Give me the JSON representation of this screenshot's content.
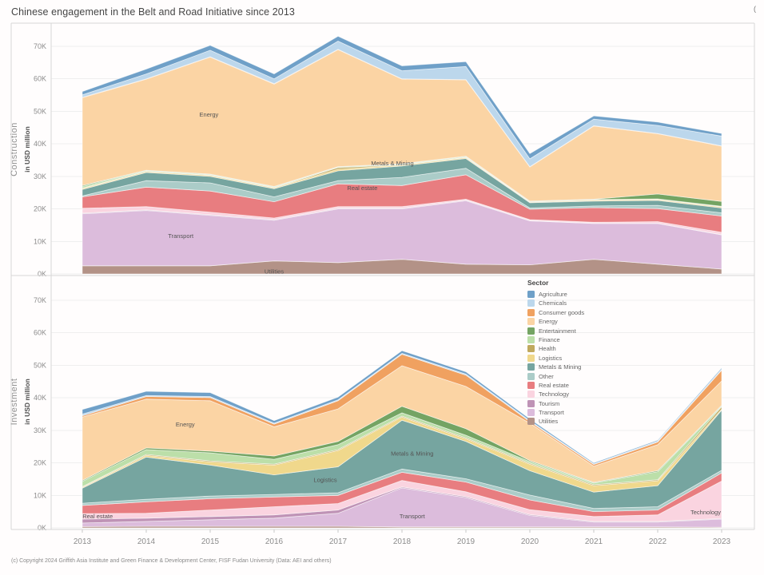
{
  "title": "Chinese engagement in the Belt and Road Initiative since 2013",
  "corner_text": "(",
  "footer": "(c) Copyright 2024 Griffith Asia Institute and Green Finance & Development Center, FISF Fudan University (Data: AEI and others)",
  "legend": {
    "title": "Sector",
    "items": [
      {
        "label": "Agriculture",
        "color": "#6FA0C8"
      },
      {
        "label": "Chemicals",
        "color": "#BCD7EC"
      },
      {
        "label": "Consumer goods",
        "color": "#F0A160"
      },
      {
        "label": "Energy",
        "color": "#FBD4A4"
      },
      {
        "label": "Entertainment",
        "color": "#74A463"
      },
      {
        "label": "Finance",
        "color": "#BCDFA9"
      },
      {
        "label": "Health",
        "color": "#C0A95E"
      },
      {
        "label": "Logistics",
        "color": "#F0D88C"
      },
      {
        "label": "Metals & Mining",
        "color": "#76A5A0"
      },
      {
        "label": "Other",
        "color": "#ABCCC8"
      },
      {
        "label": "Real estate",
        "color": "#E87D80"
      },
      {
        "label": "Technology",
        "color": "#FAD4E0"
      },
      {
        "label": "Tourism",
        "color": "#BF93B6"
      },
      {
        "label": "Transport",
        "color": "#DCBCDC"
      },
      {
        "label": "Utilities",
        "color": "#B39287"
      }
    ]
  },
  "x_axis": {
    "years": [
      "2013",
      "2014",
      "2015",
      "2016",
      "2017",
      "2018",
      "2019",
      "2020",
      "2021",
      "2022",
      "2023"
    ]
  },
  "y_axis": {
    "ticks": [
      "0K",
      "10K",
      "20K",
      "30K",
      "40K",
      "50K",
      "60K",
      "70K"
    ]
  },
  "panels": [
    {
      "axis_label": "Construction",
      "axis_sublabel": "in USD million"
    },
    {
      "axis_label": "Investment",
      "axis_sublabel": "in USD million"
    }
  ],
  "chart_data": [
    {
      "type": "area",
      "stacked": true,
      "panel": "Construction",
      "ylabel": "in USD million",
      "unit": "thousand USD million (K)",
      "ylim": [
        0,
        77
      ],
      "grid": true,
      "x": [
        2013,
        2014,
        2015,
        2016,
        2017,
        2018,
        2019,
        2020,
        2021,
        2022,
        2023
      ],
      "series": [
        {
          "name": "Utilities",
          "values": [
            2.5,
            2.5,
            2.5,
            4.0,
            3.5,
            4.5,
            3.0,
            2.8,
            4.5,
            3.0,
            1.5
          ]
        },
        {
          "name": "Transport",
          "values": [
            16.0,
            17.0,
            15.5,
            12.5,
            16.5,
            15.5,
            19.5,
            13.5,
            11.0,
            12.5,
            10.5
          ]
        },
        {
          "name": "Tourism",
          "values": [
            0.2,
            0.2,
            0.2,
            0.2,
            0.2,
            0.2,
            0.2,
            0.1,
            0.1,
            0.1,
            0.1
          ]
        },
        {
          "name": "Technology",
          "values": [
            1.5,
            1.0,
            0.8,
            0.5,
            0.5,
            0.5,
            0.3,
            0.3,
            0.3,
            0.5,
            0.7
          ]
        },
        {
          "name": "Real estate",
          "values": [
            3.5,
            6.0,
            6.5,
            5.0,
            7.0,
            6.5,
            7.5,
            3.2,
            4.5,
            4.0,
            5.0
          ]
        },
        {
          "name": "Other",
          "values": [
            0.3,
            2.0,
            2.5,
            1.5,
            1.0,
            2.5,
            2.0,
            0.4,
            0.5,
            1.0,
            1.0
          ]
        },
        {
          "name": "Metals & Mining",
          "values": [
            2.0,
            2.5,
            2.0,
            2.5,
            3.0,
            3.5,
            3.0,
            1.6,
            1.5,
            1.5,
            1.5
          ]
        },
        {
          "name": "Logistics",
          "values": [
            0.3,
            0.3,
            0.3,
            0.3,
            0.5,
            0.3,
            0.3,
            0.2,
            0.3,
            0.3,
            0.3
          ]
        },
        {
          "name": "Health",
          "values": [
            0.1,
            0.1,
            0.1,
            0.1,
            0.5,
            0.1,
            0.1,
            0.1,
            0.1,
            0.1,
            0.1
          ]
        },
        {
          "name": "Finance",
          "values": [
            0.5,
            0.2,
            0.2,
            0.2,
            0.2,
            0.2,
            0.2,
            0.1,
            0.1,
            0.1,
            0.1
          ]
        },
        {
          "name": "Entertainment",
          "values": [
            0.3,
            0.1,
            0.1,
            0.1,
            0.1,
            0.1,
            0.1,
            0.1,
            0.1,
            1.5,
            1.5
          ]
        },
        {
          "name": "Energy",
          "values": [
            27.0,
            28.0,
            36.0,
            31.5,
            36.0,
            26.0,
            23.5,
            10.5,
            22.5,
            18.5,
            17.0
          ]
        },
        {
          "name": "Consumer goods",
          "values": [
            0.1,
            0.1,
            0.1,
            0.1,
            0.1,
            0.1,
            0.1,
            0.1,
            0.1,
            0.1,
            0.1
          ]
        },
        {
          "name": "Chemicals",
          "values": [
            0.8,
            1.5,
            2.0,
            1.5,
            2.5,
            2.5,
            4.0,
            2.4,
            2.0,
            2.5,
            3.0
          ]
        },
        {
          "name": "Agriculture",
          "values": [
            1.0,
            1.5,
            1.5,
            1.5,
            1.5,
            1.5,
            1.5,
            1.6,
            1.0,
            1.0,
            0.8
          ]
        }
      ],
      "annotations": [
        {
          "label": "Energy",
          "x": 2014.98,
          "y": 49.1
        },
        {
          "label": "Metals & Mining",
          "x": 2017.85,
          "y": 34.2
        },
        {
          "label": "Real estate",
          "x": 2017.38,
          "y": 26.5
        },
        {
          "label": "Transport",
          "x": 2014.54,
          "y": 11.8
        },
        {
          "label": "Utilities",
          "x": 2016.0,
          "y": 0.8
        }
      ]
    },
    {
      "type": "area",
      "stacked": true,
      "panel": "Investment",
      "ylabel": "in USD million",
      "unit": "thousand USD million (K)",
      "ylim": [
        0,
        77
      ],
      "grid": true,
      "x": [
        2013,
        2014,
        2015,
        2016,
        2017,
        2018,
        2019,
        2020,
        2021,
        2022,
        2023
      ],
      "series": [
        {
          "name": "Utilities",
          "values": [
            0.4,
            0.5,
            0.5,
            0.5,
            0.5,
            0.3,
            0.3,
            0.3,
            0.3,
            0.3,
            0.2
          ]
        },
        {
          "name": "Transport",
          "values": [
            1.1,
            1.5,
            2.0,
            2.5,
            4.0,
            12.0,
            9.0,
            3.5,
            1.5,
            1.5,
            2.5
          ]
        },
        {
          "name": "Tourism",
          "values": [
            1.2,
            1.0,
            1.0,
            1.0,
            1.0,
            0.3,
            0.3,
            0.3,
            0.2,
            0.2,
            0.2
          ]
        },
        {
          "name": "Technology",
          "values": [
            1.7,
            1.5,
            2.0,
            2.5,
            2.0,
            2.0,
            1.5,
            1.5,
            1.5,
            2.0,
            11.5
          ]
        },
        {
          "name": "Real estate",
          "values": [
            2.5,
            3.5,
            3.5,
            3.0,
            2.5,
            2.5,
            3.0,
            3.0,
            1.5,
            1.5,
            2.5
          ]
        },
        {
          "name": "Other",
          "values": [
            0.7,
            0.8,
            0.8,
            0.8,
            0.8,
            1.0,
            1.0,
            1.5,
            1.0,
            1.0,
            0.8
          ]
        },
        {
          "name": "Metals & Mining",
          "values": [
            4.6,
            13.0,
            9.5,
            6.0,
            8.0,
            15.0,
            11.5,
            7.5,
            5.0,
            6.5,
            18.5
          ]
        },
        {
          "name": "Logistics",
          "values": [
            0.3,
            0.5,
            1.0,
            3.0,
            5.0,
            1.0,
            0.8,
            2.0,
            2.0,
            1.5,
            0.3
          ]
        },
        {
          "name": "Health",
          "values": [
            0.2,
            0.3,
            0.3,
            0.3,
            0.3,
            0.3,
            0.3,
            0.3,
            0.3,
            0.3,
            0.8
          ]
        },
        {
          "name": "Finance",
          "values": [
            1.6,
            1.5,
            2.5,
            1.5,
            1.5,
            1.0,
            0.8,
            0.5,
            0.5,
            2.5,
            0.2
          ]
        },
        {
          "name": "Entertainment",
          "values": [
            0.3,
            0.5,
            0.5,
            1.0,
            1.0,
            2.0,
            2.0,
            0.3,
            0.2,
            0.3,
            0.2
          ]
        },
        {
          "name": "Energy",
          "values": [
            19.5,
            15.0,
            15.5,
            9.0,
            10.0,
            12.5,
            13.0,
            11.5,
            5.0,
            8.0,
            7.5
          ]
        },
        {
          "name": "Consumer goods",
          "values": [
            0.4,
            0.8,
            1.0,
            0.8,
            2.5,
            3.5,
            3.5,
            0.5,
            0.5,
            0.8,
            3.3
          ]
        },
        {
          "name": "Chemicals",
          "values": [
            0.5,
            0.3,
            0.3,
            0.3,
            0.3,
            0.3,
            0.3,
            0.3,
            0.2,
            0.3,
            0.3
          ]
        },
        {
          "name": "Agriculture",
          "values": [
            1.4,
            1.3,
            1.2,
            0.8,
            0.8,
            0.8,
            0.7,
            0.5,
            0.3,
            0.3,
            0.4
          ]
        }
      ],
      "annotations": [
        {
          "label": "Energy",
          "x": 2014.61,
          "y": 31.9
        },
        {
          "label": "Metals & Mining",
          "x": 2018.16,
          "y": 23.0
        },
        {
          "label": "Logistics",
          "x": 2016.8,
          "y": 14.9
        },
        {
          "label": "Real estate",
          "x": 2013.24,
          "y": 3.7
        },
        {
          "label": "Transport",
          "x": 2018.16,
          "y": 3.7
        },
        {
          "label": "Technology",
          "x": 2022.75,
          "y": 4.9
        }
      ]
    }
  ]
}
